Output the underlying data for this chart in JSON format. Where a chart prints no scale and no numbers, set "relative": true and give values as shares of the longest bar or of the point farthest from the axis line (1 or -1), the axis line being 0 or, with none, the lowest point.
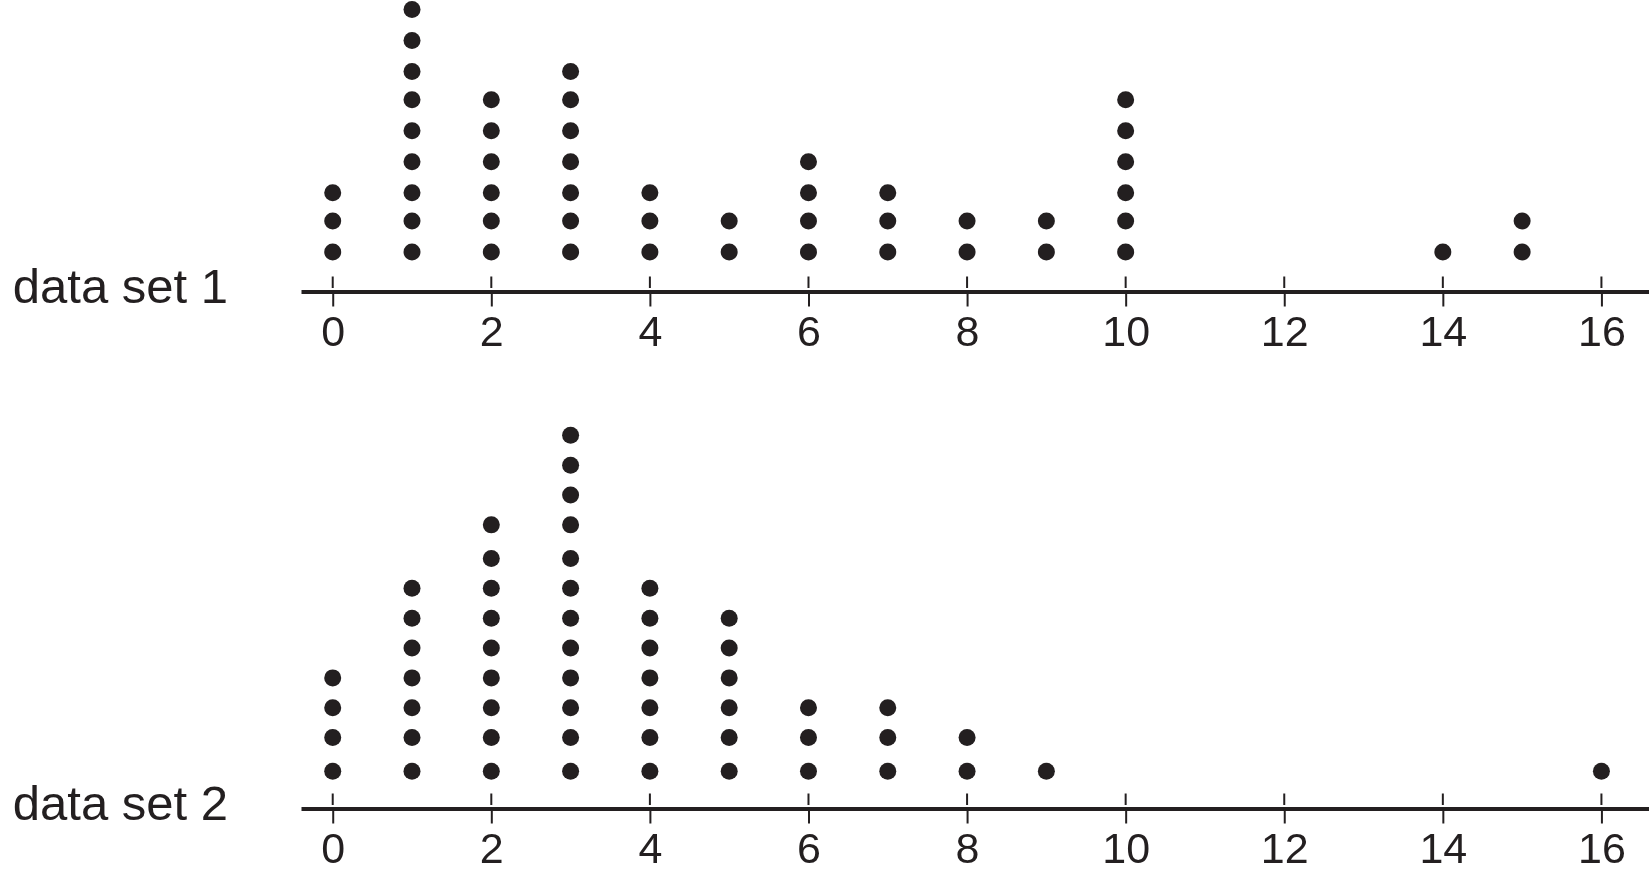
{
  "chart_data": [
    {
      "type": "scatter",
      "relative": true,
      "ylabel": "data set 1",
      "x": [
        0,
        0,
        0,
        1,
        1,
        1,
        1,
        1,
        1,
        1,
        1,
        1,
        2,
        2,
        2,
        2,
        2,
        2,
        3,
        3,
        3,
        3,
        3,
        3,
        3,
        4,
        4,
        4,
        5,
        5,
        6,
        6,
        6,
        6,
        7,
        7,
        7,
        8,
        8,
        9,
        9,
        10,
        10,
        10,
        10,
        10,
        10,
        14,
        15,
        15
      ],
      "values": [
        0.14,
        0.25,
        0.35,
        0.14,
        0.25,
        0.35,
        0.46,
        0.57,
        0.68,
        0.78,
        0.89,
        1,
        0.14,
        0.25,
        0.35,
        0.46,
        0.57,
        0.68,
        0.14,
        0.25,
        0.35,
        0.46,
        0.57,
        0.68,
        0.78,
        0.14,
        0.25,
        0.35,
        0.14,
        0.25,
        0.14,
        0.25,
        0.35,
        0.46,
        0.14,
        0.25,
        0.35,
        0.14,
        0.25,
        0.14,
        0.25,
        0.14,
        0.25,
        0.35,
        0.46,
        0.57,
        0.68,
        0.14,
        0.14,
        0.25
      ],
      "color": "#231f20",
      "marker": "circle",
      "xlim": [
        -0.4,
        16.6
      ],
      "xticks": [
        0,
        2,
        4,
        6,
        8,
        10,
        12,
        14,
        16
      ],
      "tick_labels": "x"
    },
    {
      "type": "scatter",
      "relative": true,
      "ylabel": "data set 2",
      "x": [
        0,
        0,
        0,
        0,
        1,
        1,
        1,
        1,
        1,
        1,
        1,
        2,
        2,
        2,
        2,
        2,
        2,
        2,
        2,
        2,
        3,
        3,
        3,
        3,
        3,
        3,
        3,
        3,
        3,
        3,
        3,
        3,
        4,
        4,
        4,
        4,
        4,
        4,
        4,
        5,
        5,
        5,
        5,
        5,
        5,
        6,
        6,
        6,
        7,
        7,
        7,
        8,
        8,
        9,
        16
      ],
      "values": [
        0.1,
        0.19,
        0.27,
        0.35,
        0.1,
        0.19,
        0.27,
        0.35,
        0.43,
        0.51,
        0.59,
        0.1,
        0.19,
        0.27,
        0.35,
        0.43,
        0.51,
        0.59,
        0.67,
        0.76,
        0.1,
        0.19,
        0.27,
        0.35,
        0.43,
        0.51,
        0.59,
        0.67,
        0.76,
        0.84,
        0.92,
        1,
        0.1,
        0.19,
        0.27,
        0.35,
        0.43,
        0.51,
        0.59,
        0.1,
        0.19,
        0.27,
        0.35,
        0.43,
        0.51,
        0.1,
        0.19,
        0.27,
        0.1,
        0.19,
        0.27,
        0.1,
        0.19,
        0.1,
        0.1
      ],
      "color": "#231f20",
      "marker": "circle",
      "xlim": [
        -0.4,
        16.6
      ],
      "xticks": [
        0,
        2,
        4,
        6,
        8,
        10,
        12,
        14,
        16
      ],
      "tick_labels": "x"
    }
  ]
}
